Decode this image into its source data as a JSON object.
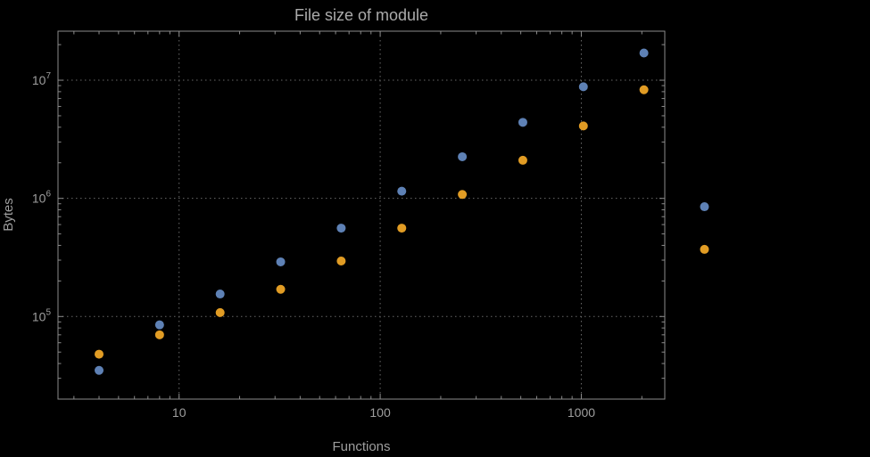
{
  "chart_data": {
    "type": "scatter",
    "title": "File size of module",
    "xlabel": "Functions",
    "ylabel": "Bytes",
    "x_scale": "log",
    "y_scale": "log",
    "xlim": [
      2.5,
      2600
    ],
    "ylim": [
      20000,
      26000000
    ],
    "x_ticks": [
      10,
      100,
      1000
    ],
    "x_tick_labels": [
      "10",
      "100",
      "1000"
    ],
    "y_ticks": [
      100000,
      1000000,
      10000000
    ],
    "y_tick_labels": [
      "10^5",
      "10^6",
      "10^7"
    ],
    "grid": true,
    "grid_style": "dotted",
    "legend": "none",
    "x": [
      4,
      8,
      16,
      32,
      64,
      128,
      256,
      512,
      1024,
      2048,
      4096
    ],
    "series": [
      {
        "name": "blue",
        "color": "#5e81b5",
        "values": [
          35000,
          85000,
          155000,
          290000,
          560000,
          1150000,
          2250000,
          4400000,
          8800000,
          17000000,
          850000
        ]
      },
      {
        "name": "orange",
        "color": "#e19c24",
        "values": [
          48000,
          70000,
          108000,
          170000,
          295000,
          560000,
          1080000,
          2100000,
          4100000,
          8300000,
          370000
        ]
      }
    ],
    "styles": {
      "background": "#000000",
      "frame_color": "#8c8c8c",
      "grid_color": "#696969",
      "text_color": "#9e9e9e",
      "point_radius": 5
    }
  }
}
